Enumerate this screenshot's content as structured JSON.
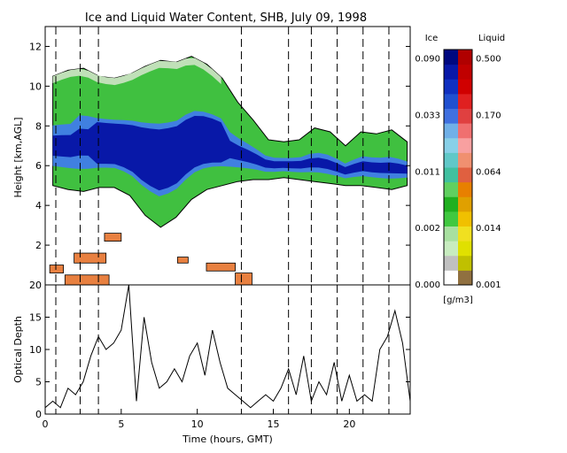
{
  "chart_data": [
    {
      "type": "heatmap",
      "title": "Ice and Liquid Water Content, SHB, July 09, 1998",
      "ylabel": "Height [km,AGL]",
      "xlim": [
        0,
        24
      ],
      "ylim": [
        0,
        13
      ],
      "yticks": [
        2,
        4,
        6,
        8,
        10,
        12
      ],
      "vertical_dashed_lines_hours": [
        0.7,
        2.3,
        3.5,
        12.9,
        16.0,
        17.5,
        19.2,
        20.9,
        22.6
      ],
      "ice_cloud_layer": {
        "time_start": 0.5,
        "time_end": 23.8,
        "top_km": [
          10.5,
          10.8,
          10.9,
          10.5,
          10.4,
          10.6,
          11.0,
          11.3,
          11.2,
          11.5,
          11.1,
          10.4,
          9.2,
          8.3,
          7.3,
          7.2,
          7.3,
          7.9,
          7.7,
          7.0,
          7.7,
          7.6,
          7.8,
          7.2
        ],
        "base_km": [
          5.0,
          4.8,
          4.7,
          4.9,
          4.9,
          4.5,
          3.5,
          2.9,
          3.4,
          4.3,
          4.8,
          5.0,
          5.2,
          5.3,
          5.3,
          5.4,
          5.3,
          5.2,
          5.1,
          5.0,
          5.0,
          4.9,
          4.8,
          5.0
        ]
      },
      "liquid_cloud_patches": [
        {
          "t0": 0.3,
          "t1": 1.2,
          "h0": 0.6,
          "h1": 1.0
        },
        {
          "t0": 1.9,
          "t1": 4.0,
          "h0": 1.1,
          "h1": 1.6
        },
        {
          "t0": 3.9,
          "t1": 5.0,
          "h0": 2.2,
          "h1": 2.6
        },
        {
          "t0": 1.3,
          "t1": 4.2,
          "h0": 0.0,
          "h1": 0.5
        },
        {
          "t0": 8.7,
          "t1": 9.4,
          "h0": 1.1,
          "h1": 1.4
        },
        {
          "t0": 10.6,
          "t1": 12.5,
          "h0": 0.7,
          "h1": 1.1
        },
        {
          "t0": 12.5,
          "t1": 13.6,
          "h0": 0.0,
          "h1": 0.6
        }
      ]
    },
    {
      "type": "line",
      "ylabel": "Optical Depth",
      "xlabel": "Time (hours, GMT)",
      "xlim": [
        0,
        24
      ],
      "ylim": [
        0,
        20
      ],
      "xticks": [
        0,
        5,
        10,
        15,
        20
      ],
      "yticks": [
        0,
        5,
        10,
        15,
        20
      ],
      "x": [
        0,
        0.5,
        1,
        1.5,
        2,
        2.5,
        3,
        3.5,
        4,
        4.5,
        5,
        5.5,
        6,
        6.5,
        7,
        7.5,
        8,
        8.5,
        9,
        9.5,
        10,
        10.5,
        11,
        11.5,
        12,
        12.5,
        13,
        13.5,
        14,
        14.5,
        15,
        15.5,
        16,
        16.5,
        17,
        17.5,
        18,
        18.5,
        19,
        19.5,
        20,
        20.5,
        21,
        21.5,
        22,
        22.5,
        23,
        23.5,
        24
      ],
      "y": [
        1,
        2,
        1,
        4,
        3,
        5,
        9,
        12,
        10,
        11,
        13,
        20,
        2,
        15,
        8,
        4,
        5,
        7,
        5,
        9,
        11,
        6,
        13,
        8,
        4,
        3,
        2,
        1,
        2,
        3,
        2,
        4,
        7,
        3,
        9,
        2,
        5,
        3,
        8,
        2,
        6,
        2,
        3,
        2,
        10,
        12,
        16,
        11,
        2
      ]
    }
  ],
  "colorbar": {
    "ice_label": "Ice",
    "liquid_label": "Liquid",
    "unit": "[g/m3]",
    "ice_ticks": [
      "0.000",
      "0.002",
      "0.011",
      "0.033",
      "0.090"
    ],
    "liquid_ticks": [
      "0.001",
      "0.014",
      "0.064",
      "0.170",
      "0.500"
    ],
    "ice_colors": [
      "#ffffff",
      "#c0c0c0",
      "#c8ecc0",
      "#a8e0a0",
      "#40c840",
      "#20b020",
      "#60d060",
      "#40c0a0",
      "#60c8c8",
      "#88d0e8",
      "#70b0e8",
      "#4070e0",
      "#2050d0",
      "#1030c0",
      "#0818a8",
      "#000880"
    ],
    "liquid_colors": [
      "#907040",
      "#c0c000",
      "#e0e000",
      "#f0e020",
      "#f0c000",
      "#e0a000",
      "#e88000",
      "#e06040",
      "#f09070",
      "#f8a0a0",
      "#f07070",
      "#e04040",
      "#e02020",
      "#d00000",
      "#c00000",
      "#b00000"
    ]
  }
}
